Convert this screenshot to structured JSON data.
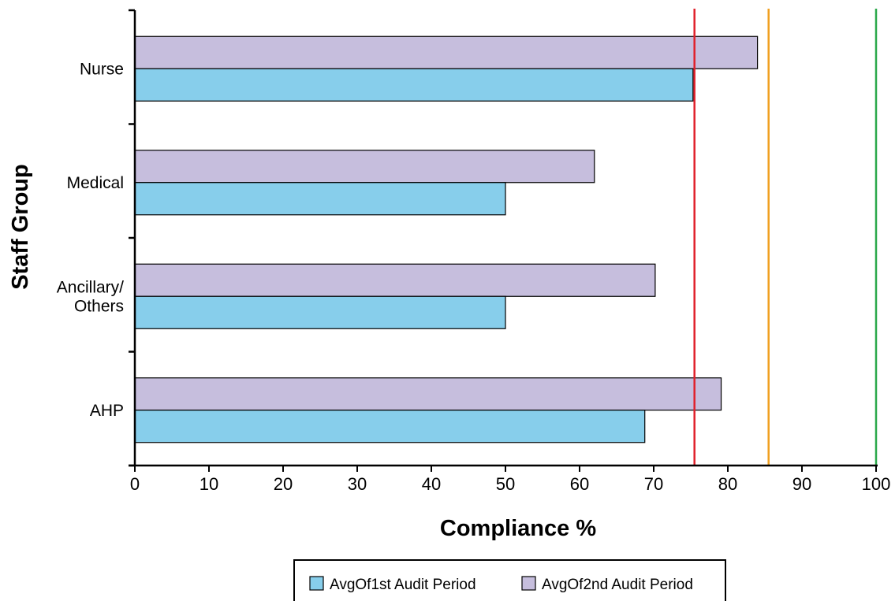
{
  "chart_data": {
    "type": "bar",
    "orientation": "horizontal",
    "categories": [
      "Nurse",
      "Medical",
      "Ancillary/\nOthers",
      "AHP"
    ],
    "series": [
      {
        "name": "AvgOf1st Audit Period",
        "values": [
          75.3,
          50.0,
          50.0,
          68.8
        ],
        "color": "#87ceeb"
      },
      {
        "name": "AvgOf2nd Audit Period",
        "values": [
          84.0,
          62.0,
          70.2,
          79.1
        ],
        "color": "#c6bedd"
      }
    ],
    "reference_lines": [
      {
        "value": 75.5,
        "color": "#e0212b"
      },
      {
        "value": 85.5,
        "color": "#f0a020"
      },
      {
        "value": 100,
        "color": "#2aa84a"
      }
    ],
    "xlabel": "Compliance %",
    "ylabel": "Staff Group",
    "xlim": [
      0,
      100
    ],
    "xticks": [
      0,
      10,
      20,
      30,
      40,
      50,
      60,
      70,
      80,
      90,
      100
    ],
    "grid": false,
    "legend_position": "bottom"
  }
}
